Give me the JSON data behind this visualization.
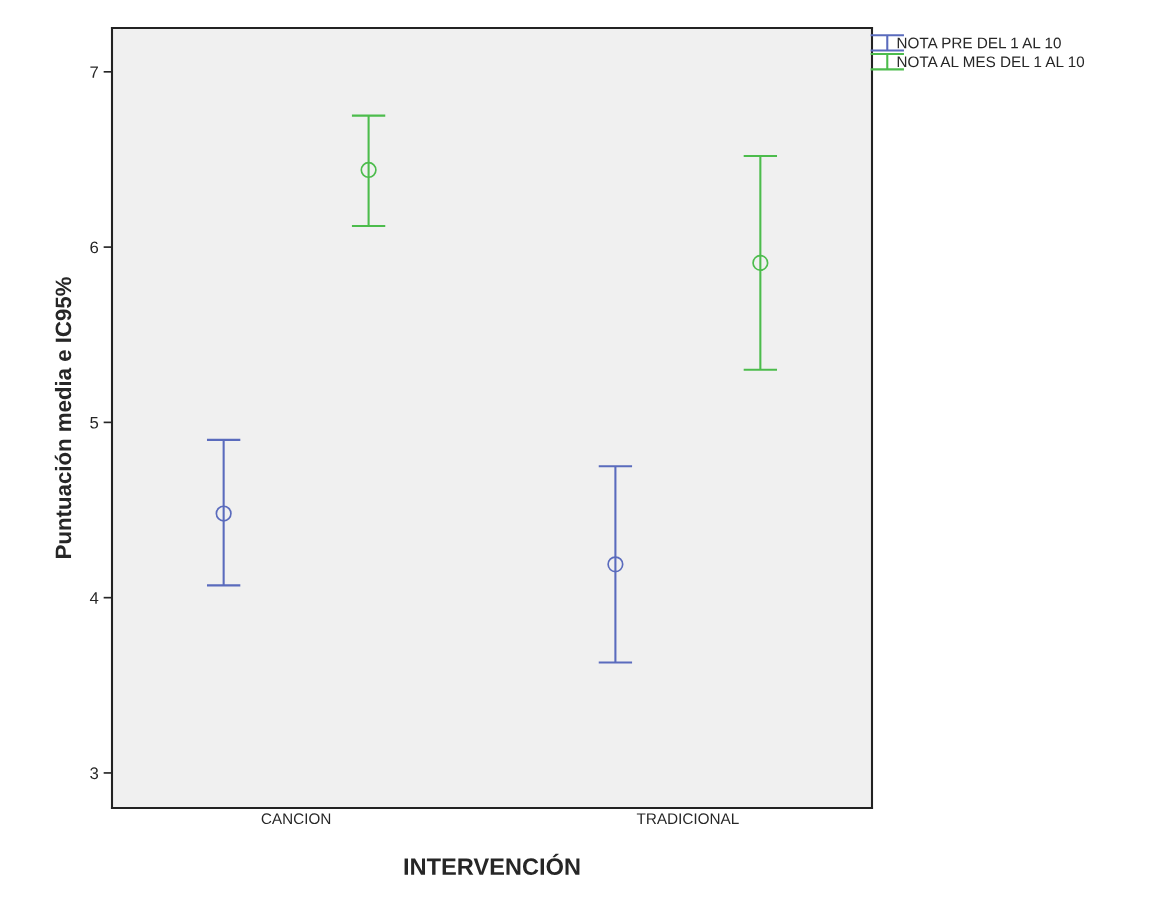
{
  "chart_data": {
    "type": "scatter",
    "xlabel": "INTERVENCIÓN",
    "ylabel": "Puntuación media e IC95%",
    "categories": [
      "CANCION",
      "TRADICIONAL"
    ],
    "series": [
      {
        "name": "NOTA PRE DEL 1 AL 10",
        "color": "#5a6bbd",
        "values": [
          4.48,
          4.19
        ],
        "errors": [
          [
            4.07,
            4.9
          ],
          [
            3.63,
            4.75
          ]
        ]
      },
      {
        "name": "NOTA AL MES DEL 1 AL 10",
        "color": "#4cbc4c",
        "values": [
          6.44,
          5.91
        ],
        "errors": [
          [
            6.12,
            6.75
          ],
          [
            5.3,
            6.52
          ]
        ]
      }
    ],
    "ylim": [
      2.8,
      7.25
    ],
    "yticks": [
      3,
      4,
      5,
      6,
      7
    ],
    "marker": "circle",
    "grid": false,
    "legend": "top right"
  }
}
